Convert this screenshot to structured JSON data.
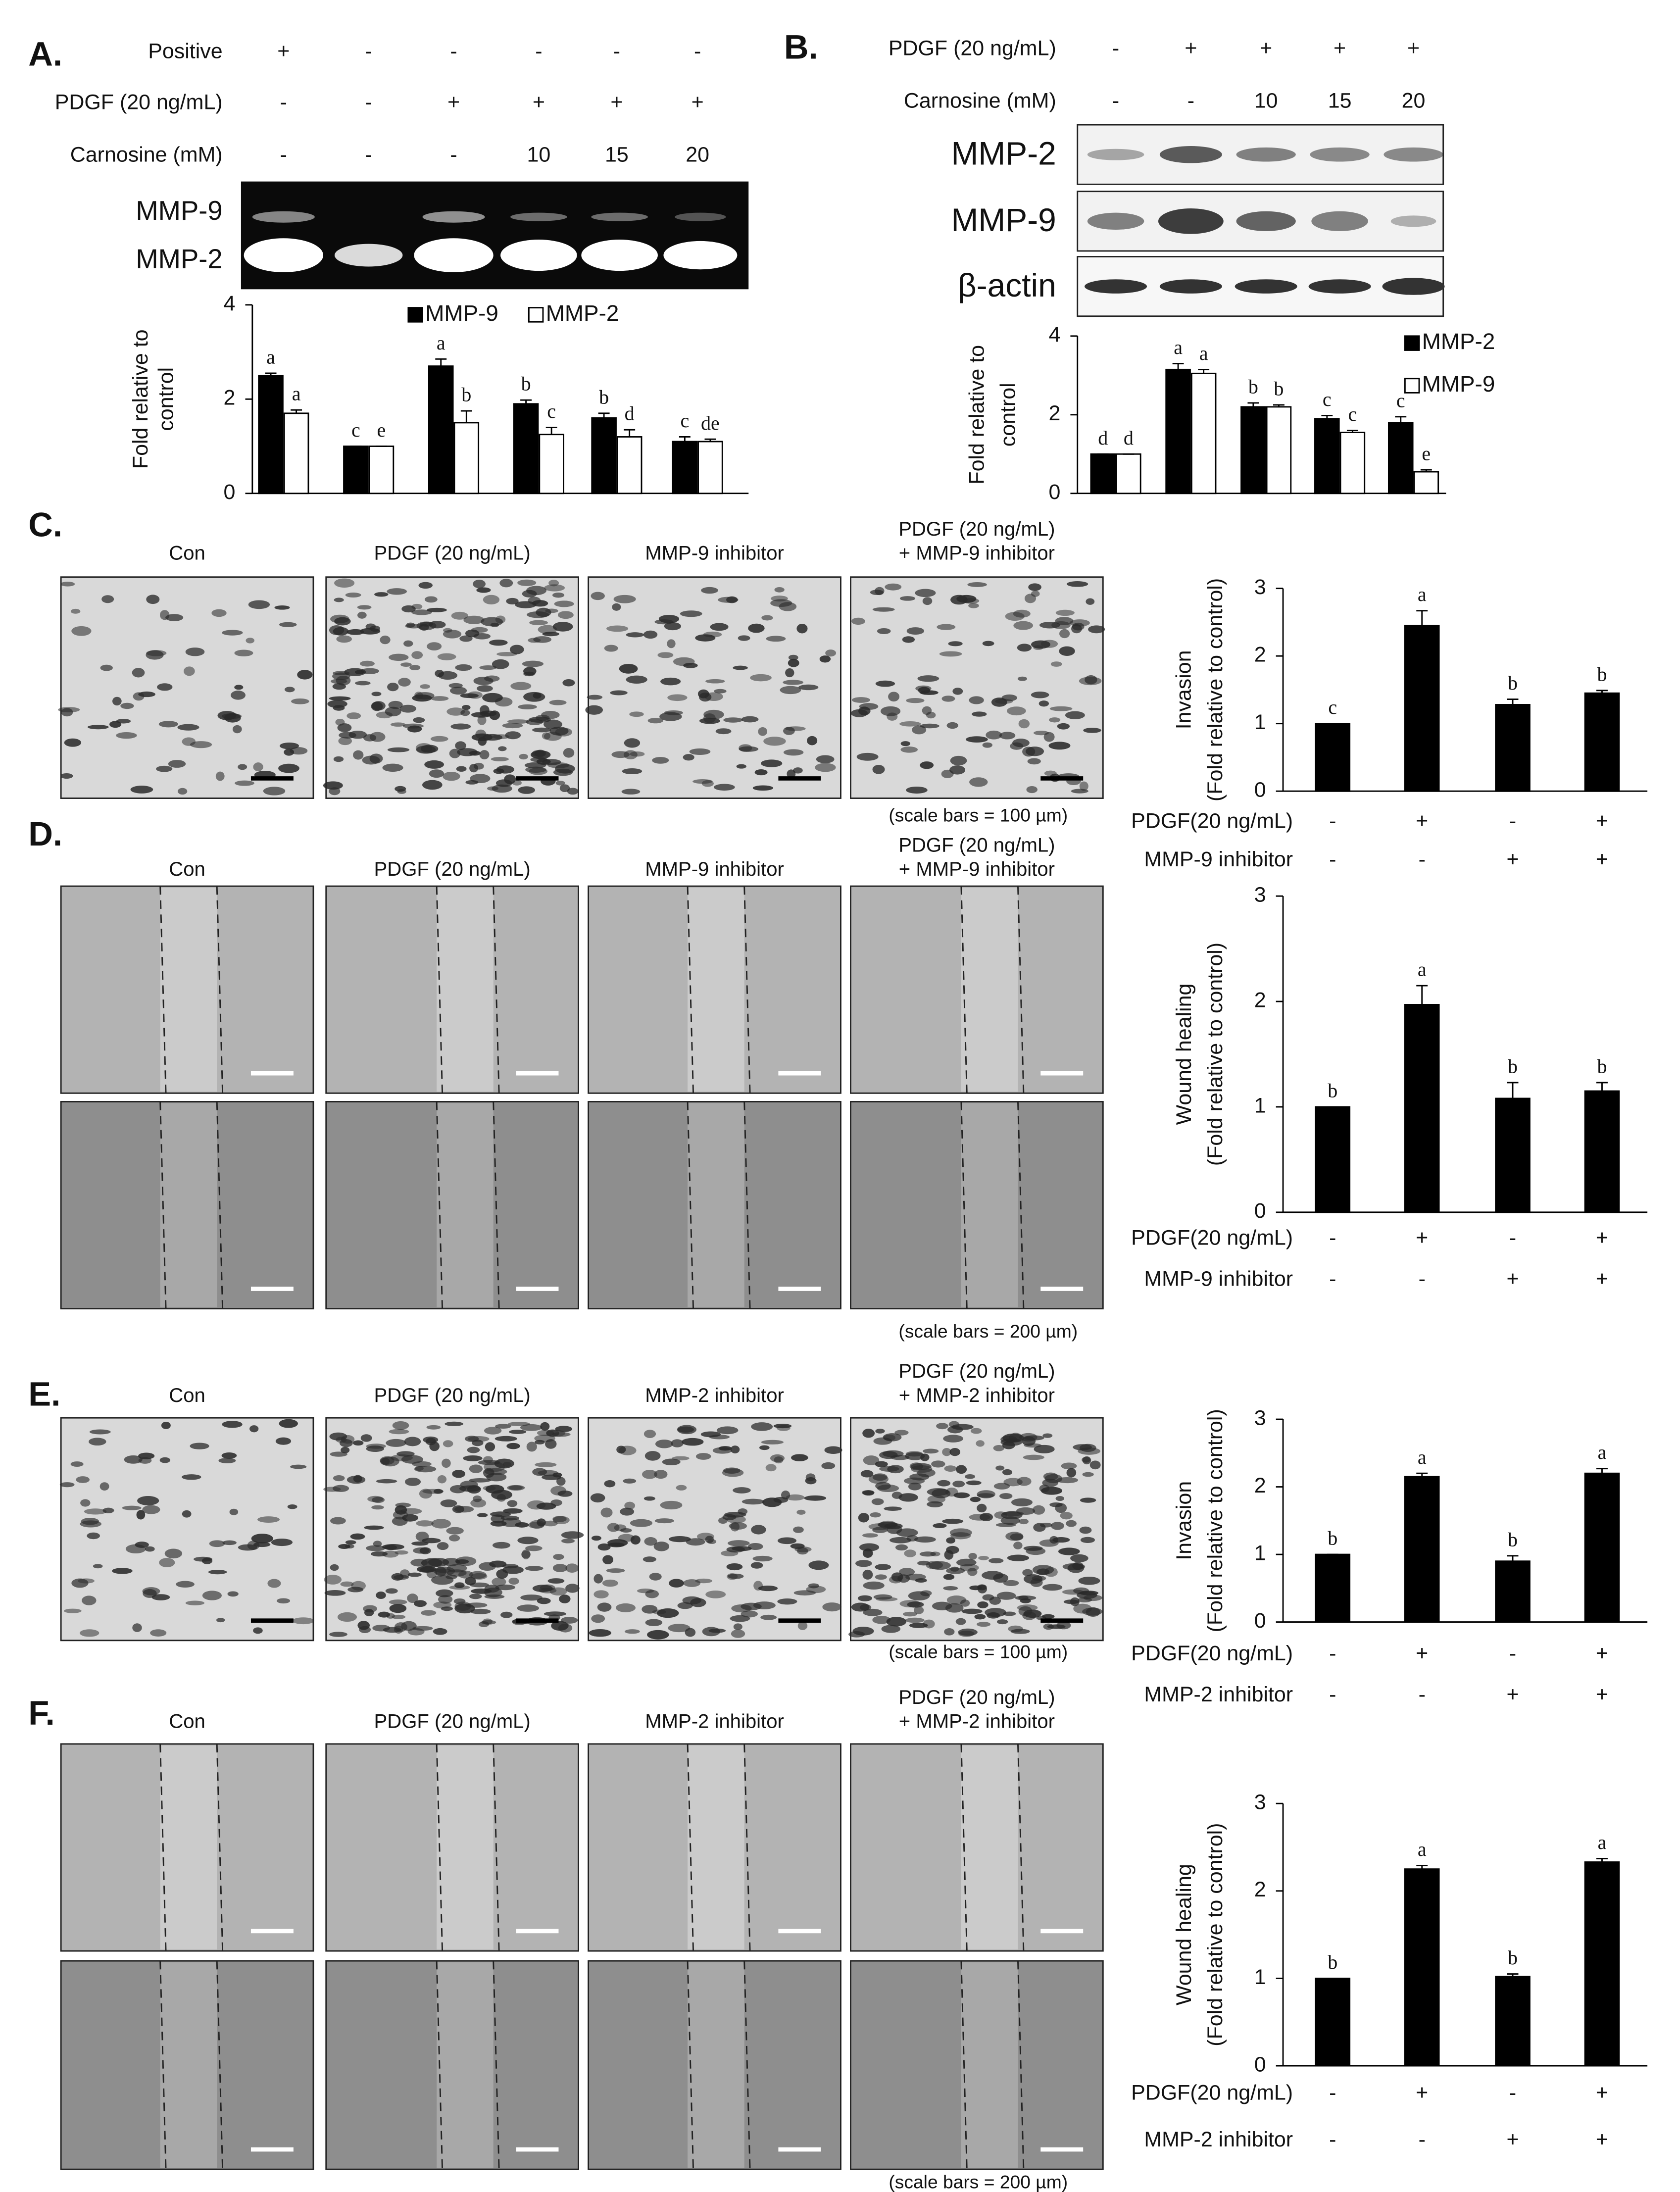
{
  "figure": {
    "A": {
      "label": "A.",
      "treatments": [
        {
          "label": "Positive",
          "signs": [
            "+",
            "-",
            "-",
            "-",
            "-",
            "-"
          ]
        },
        {
          "label": "PDGF (20 ng/mL)",
          "signs": [
            "-",
            "-",
            "+",
            "+",
            "+",
            "+"
          ]
        },
        {
          "label": "Carnosine (mM)",
          "signs": [
            "-",
            "-",
            "-",
            "10",
            "15",
            "20"
          ]
        }
      ],
      "blot_labels": [
        "MMP-9",
        "MMP-2"
      ]
    },
    "B": {
      "label": "B.",
      "treatments": [
        {
          "label": "PDGF (20 ng/mL)",
          "signs": [
            "-",
            "+",
            "+",
            "+",
            "+"
          ]
        },
        {
          "label": "Carnosine (mM)",
          "signs": [
            "-",
            "-",
            "10",
            "15",
            "20"
          ]
        }
      ],
      "blot_labels": [
        "MMP-2",
        "MMP-9",
        "β-actin"
      ]
    },
    "C": {
      "label": "C.",
      "headings": [
        "Con",
        "PDGF (20 ng/mL)",
        "MMP-9 inhibitor",
        [
          "PDGF (20 ng/mL)",
          "+ MMP-9 inhibitor"
        ]
      ],
      "scale_note": "(scale bars = 100 µm)"
    },
    "D": {
      "label": "D.",
      "headings": [
        "Con",
        "PDGF (20 ng/mL)",
        "MMP-9 inhibitor",
        [
          "PDGF (20 ng/mL)",
          "+ MMP-9 inhibitor"
        ]
      ],
      "scale_note": "(scale bars = 200 µm)"
    },
    "E": {
      "label": "E.",
      "headings": [
        "Con",
        "PDGF (20 ng/mL)",
        "MMP-2 inhibitor",
        [
          "PDGF (20 ng/mL)",
          "+ MMP-2 inhibitor"
        ]
      ],
      "scale_note": "(scale bars = 100 µm)"
    },
    "F": {
      "label": "F.",
      "headings": [
        "Con",
        "PDGF (20 ng/mL)",
        "MMP-2 inhibitor",
        [
          "PDGF (20 ng/mL)",
          "+ MMP-2 inhibitor"
        ]
      ],
      "scale_note": "(scale bars = 200 µm)"
    }
  },
  "chart_data": [
    {
      "type": "bar",
      "ylabel": [
        "Fold relative to",
        "control"
      ],
      "ylim": [
        0,
        4
      ],
      "yticks": [
        0,
        2,
        4
      ],
      "categories": [
        null,
        null,
        null,
        null,
        null,
        null
      ],
      "series": [
        {
          "name": "MMP-9",
          "color": "#000000",
          "values": [
            2.5,
            1,
            2.7,
            1.9,
            1.6,
            1.1
          ],
          "errors": [
            0.05,
            0,
            0.15,
            0.08,
            0.1,
            0.1
          ],
          "letters": [
            "a",
            "c",
            "a",
            "b",
            "b",
            "c"
          ]
        },
        {
          "name": "MMP-2",
          "color": "#ffffff",
          "values": [
            1.7,
            1,
            1.5,
            1.25,
            1.2,
            1.1
          ],
          "errors": [
            0.07,
            0,
            0.25,
            0.15,
            0.15,
            0.05
          ],
          "letters": [
            "a",
            "e",
            "b",
            "c",
            "d",
            "de"
          ]
        }
      ]
    },
    {
      "type": "bar",
      "ylabel": [
        "Fold relative to",
        "control"
      ],
      "ylim": [
        0,
        4
      ],
      "yticks": [
        0,
        2,
        4
      ],
      "categories": [
        null,
        null,
        null,
        null,
        null
      ],
      "series": [
        {
          "name": "MMP-2",
          "color": "#000000",
          "values": [
            1,
            3.15,
            2.2,
            1.9,
            1.8
          ],
          "errors": [
            0,
            0.15,
            0.1,
            0.08,
            0.15
          ],
          "letters": [
            "d",
            "a",
            "b",
            "c",
            "c"
          ]
        },
        {
          "name": "MMP-9",
          "color": "#ffffff",
          "values": [
            1,
            3.05,
            2.2,
            1.55,
            0.55
          ],
          "errors": [
            0,
            0.1,
            0.05,
            0.05,
            0.05
          ],
          "letters": [
            "d",
            "a",
            "b",
            "c",
            "e"
          ]
        }
      ]
    },
    {
      "type": "bar",
      "ylabel": [
        "Invasion",
        "(Fold relative to control)"
      ],
      "ylim": [
        0,
        3
      ],
      "yticks": [
        0,
        1,
        2,
        3
      ],
      "categories": [
        null,
        null,
        null,
        null
      ],
      "series": [
        {
          "color": "#000000",
          "values": [
            1,
            2.45,
            1.28,
            1.45
          ],
          "errors": [
            0,
            0.22,
            0.08,
            0.04
          ],
          "letters": [
            "c",
            "a",
            "b",
            "b"
          ]
        }
      ],
      "treatments": [
        {
          "label": "PDGF(20 ng/mL)",
          "signs": [
            "-",
            "+",
            "-",
            "+"
          ]
        },
        {
          "label": "MMP-9 inhibitor",
          "signs": [
            "-",
            "-",
            "+",
            "+"
          ]
        }
      ]
    },
    {
      "type": "bar",
      "ylabel": [
        "Wound healing",
        "(Fold relative to control)"
      ],
      "ylim": [
        0,
        3
      ],
      "yticks": [
        0,
        1,
        2,
        3
      ],
      "categories": [
        null,
        null,
        null,
        null
      ],
      "series": [
        {
          "color": "#000000",
          "values": [
            1,
            1.97,
            1.08,
            1.15
          ],
          "errors": [
            0,
            0.18,
            0.15,
            0.08
          ],
          "letters": [
            "b",
            "a",
            "b",
            "b"
          ]
        }
      ],
      "treatments": [
        {
          "label": "PDGF(20 ng/mL)",
          "signs": [
            "-",
            "+",
            "-",
            "+"
          ]
        },
        {
          "label": "MMP-9 inhibitor",
          "signs": [
            "-",
            "-",
            "+",
            "+"
          ]
        }
      ]
    },
    {
      "type": "bar",
      "ylabel": [
        "Invasion",
        "(Fold relative to control)"
      ],
      "ylim": [
        0,
        3
      ],
      "yticks": [
        0,
        1,
        2,
        3
      ],
      "categories": [
        null,
        null,
        null,
        null
      ],
      "series": [
        {
          "color": "#000000",
          "values": [
            1,
            2.15,
            0.9,
            2.2
          ],
          "errors": [
            0,
            0.05,
            0.08,
            0.07
          ],
          "letters": [
            "b",
            "a",
            "b",
            "a"
          ]
        }
      ],
      "treatments": [
        {
          "label": "PDGF(20 ng/mL)",
          "signs": [
            "-",
            "+",
            "-",
            "+"
          ]
        },
        {
          "label": "MMP-2 inhibitor",
          "signs": [
            "-",
            "-",
            "+",
            "+"
          ]
        }
      ]
    },
    {
      "type": "bar",
      "ylabel": [
        "Wound healing",
        "(Fold relative to control)"
      ],
      "ylim": [
        0,
        3
      ],
      "yticks": [
        0,
        1,
        2,
        3
      ],
      "categories": [
        null,
        null,
        null,
        null
      ],
      "series": [
        {
          "color": "#000000",
          "values": [
            1,
            2.25,
            1.02,
            2.33
          ],
          "errors": [
            0,
            0.04,
            0.03,
            0.04
          ],
          "letters": [
            "b",
            "a",
            "b",
            "a"
          ]
        }
      ],
      "treatments": [
        {
          "label": "PDGF(20 ng/mL)",
          "signs": [
            "-",
            "+",
            "-",
            "+"
          ]
        },
        {
          "label": "MMP-2 inhibitor",
          "signs": [
            "-",
            "-",
            "+",
            "+"
          ]
        }
      ]
    }
  ]
}
